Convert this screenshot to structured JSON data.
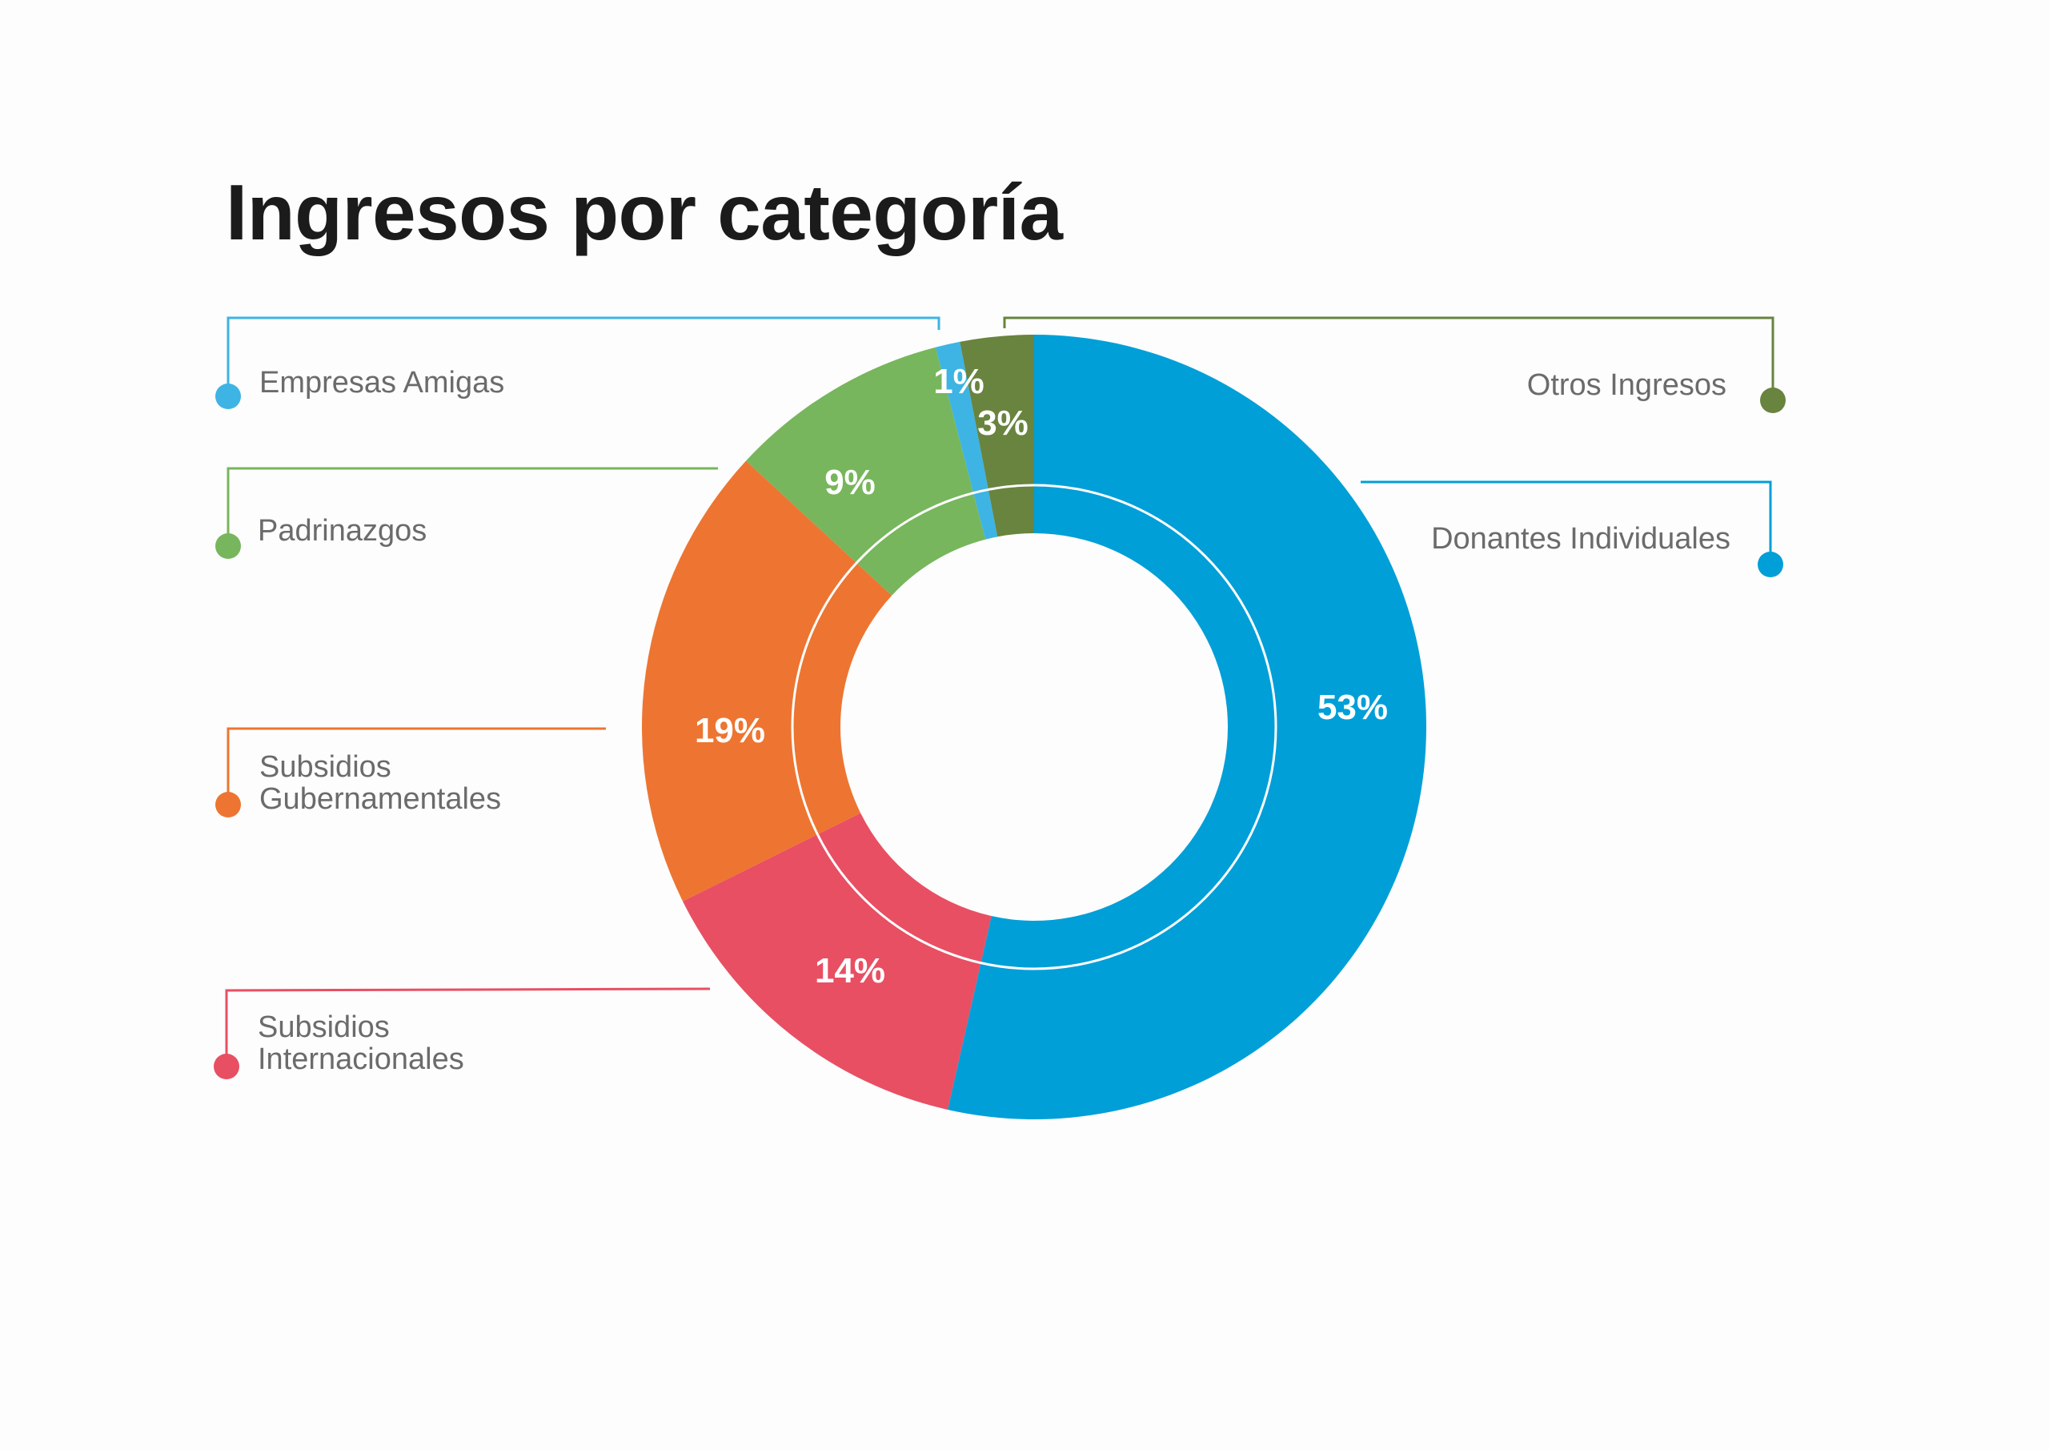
{
  "chart_data": {
    "type": "pie",
    "title": "Ingresos por categoría",
    "variant": "donut",
    "legend": "callouts on left and right with colored dots",
    "categories": [
      "Donantes Individuales",
      "Subsidios Internacionales",
      "Subsidios Gubernamentales",
      "Padrinazgos",
      "Empresas Amigas",
      "Otros Ingresos"
    ],
    "values": [
      53,
      14,
      19,
      9,
      1,
      3
    ],
    "value_labels": [
      "53%",
      "14%",
      "19%",
      "9%",
      "1%",
      "3%"
    ],
    "colors": [
      "#009fd8",
      "#e84f63",
      "#ed7531",
      "#77b65c",
      "#3db4e3",
      "#68843e"
    ]
  }
}
